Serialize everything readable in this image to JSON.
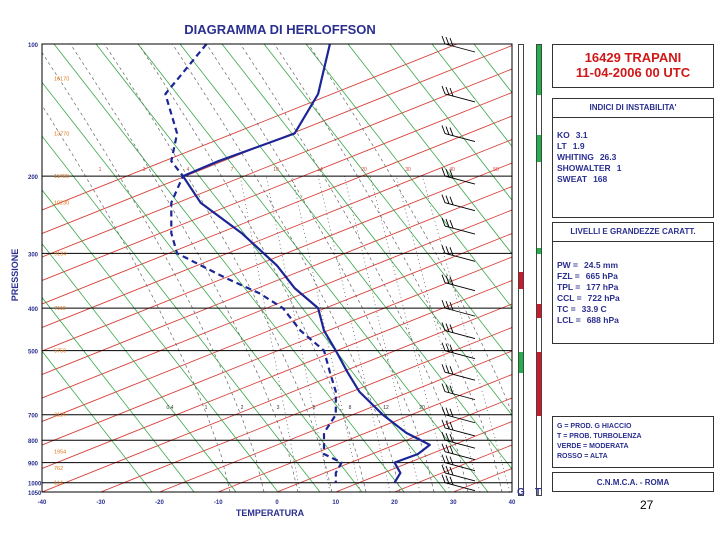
{
  "chart_data": {
    "type": "line",
    "title": "DIAGRAMMA DI HERLOFFSON",
    "xlabel": "TEMPERATURA",
    "ylabel": "PRESSIONE",
    "x_ticks": [
      -40,
      -30,
      -20,
      -10,
      0,
      10,
      20,
      30,
      40
    ],
    "xlim": [
      -40,
      40
    ],
    "y_ticks": [
      100,
      200,
      300,
      400,
      500,
      700,
      800,
      900,
      1000,
      1050
    ],
    "ylim": [
      1050,
      100
    ],
    "y_scale": "log",
    "height_labels": [
      "16170",
      "13770",
      "11780",
      "10230",
      "9134",
      "7110",
      "5750",
      "3114",
      "1954",
      "762",
      "114"
    ],
    "height_label_pressures": [
      120,
      160,
      200,
      230,
      300,
      400,
      500,
      700,
      850,
      925,
      1000
    ],
    "mixing_ratio_labels": [
      "0.4",
      "1",
      "2",
      "3",
      "5",
      "8",
      "12",
      "20"
    ],
    "isotherm_top_labels": [
      "1",
      "3",
      "4",
      "7",
      "10",
      "14",
      "20",
      "30",
      "40",
      "50"
    ],
    "series": [
      {
        "name": "",
        "style": "solid",
        "color": "#1b2596",
        "points": [
          [
            9,
            100
          ],
          [
            7,
            130
          ],
          [
            3,
            160
          ],
          [
            -10,
            185
          ],
          [
            -16,
            200
          ],
          [
            -13,
            230
          ],
          [
            -6,
            270
          ],
          [
            0,
            320
          ],
          [
            3,
            360
          ],
          [
            7,
            400
          ],
          [
            8,
            450
          ],
          [
            10,
            500
          ],
          [
            12,
            560
          ],
          [
            14,
            620
          ],
          [
            18,
            700
          ],
          [
            22,
            770
          ],
          [
            26,
            820
          ],
          [
            24,
            860
          ],
          [
            20,
            900
          ],
          [
            21,
            950
          ],
          [
            20,
            1000
          ]
        ]
      },
      {
        "name": "",
        "style": "dashed",
        "color": "#1b2596",
        "points": [
          [
            -12,
            100
          ],
          [
            -19,
            130
          ],
          [
            -17,
            160
          ],
          [
            -18,
            185
          ],
          [
            -16,
            200
          ],
          [
            -18,
            230
          ],
          [
            -18,
            270
          ],
          [
            -17,
            300
          ],
          [
            -9,
            340
          ],
          [
            -3,
            370
          ],
          [
            1,
            400
          ],
          [
            4,
            450
          ],
          [
            8,
            500
          ],
          [
            9,
            560
          ],
          [
            10,
            620
          ],
          [
            10,
            700
          ],
          [
            8,
            770
          ],
          [
            8,
            820
          ],
          [
            8,
            860
          ],
          [
            11,
            900
          ],
          [
            10,
            950
          ],
          [
            10,
            1000
          ]
        ]
      }
    ],
    "wind_barbs_pressures": [
      100,
      130,
      160,
      200,
      230,
      260,
      300,
      350,
      400,
      450,
      500,
      560,
      620,
      700,
      750,
      800,
      850,
      900,
      950,
      1000
    ],
    "grid": true
  },
  "panels": {
    "station_name": "16429 TRAPANI",
    "station_time": "11-04-2006 00 UTC",
    "indices_header": "INDICI DI INSTABILITA'",
    "indices": [
      {
        "key": "KO",
        "value": "3.1"
      },
      {
        "key": "LT",
        "value": "1.9"
      },
      {
        "key": "WHITING",
        "value": "26.3"
      },
      {
        "key": "SHOWALTER",
        "value": "1"
      },
      {
        "key": "SWEAT",
        "value": "168"
      }
    ],
    "levels_header": "LIVELLI E GRANDEZZE CARATT.",
    "levels": [
      {
        "key": "PW =",
        "value": "24.5 mm"
      },
      {
        "key": "FZL =",
        "value": "665 hPa"
      },
      {
        "key": "TPL =",
        "value": "177 hPa"
      },
      {
        "key": "CCL =",
        "value": "722 hPa"
      },
      {
        "key": "TC =",
        "value": "33.9 C"
      },
      {
        "key": "LCL =",
        "value": "688 hPa"
      }
    ],
    "legend": [
      "G = PROD. G HIACCIO",
      "T = PROB. TURBOLENZA",
      "VERDE = MODERATA",
      "ROSSO = ALTA"
    ],
    "center": "C.N.M.C.A. - ROMA"
  },
  "strips": {
    "g_label": "G",
    "t_label": "T",
    "colors": {
      "moderate": "#22b04a",
      "high": "#cc1a2a"
    },
    "g_marks": [
      {
        "from_p": 330,
        "to_p": 360,
        "level": "high"
      },
      {
        "from_p": 500,
        "to_p": 560,
        "level": "moderate"
      }
    ],
    "t_marks": [
      {
        "from_p": 100,
        "to_p": 130,
        "level": "moderate"
      },
      {
        "from_p": 160,
        "to_p": 185,
        "level": "moderate"
      },
      {
        "from_p": 290,
        "to_p": 300,
        "level": "moderate"
      },
      {
        "from_p": 390,
        "to_p": 420,
        "level": "high"
      },
      {
        "from_p": 500,
        "to_p": 700,
        "level": "high"
      }
    ]
  },
  "page_number": "27"
}
